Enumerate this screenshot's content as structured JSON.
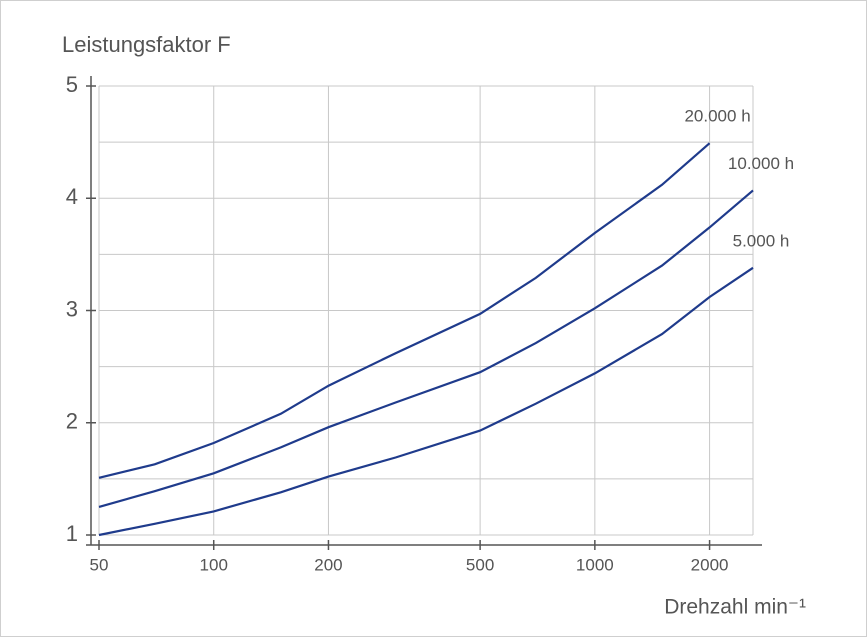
{
  "chart_data": {
    "type": "line",
    "y_label": "Leistungsfaktor F",
    "x_label": "Drehzahl min⁻¹",
    "x_scale": "log",
    "x": [
      50,
      70,
      100,
      150,
      200,
      300,
      500,
      700,
      1000,
      1500,
      2000,
      2600
    ],
    "series": [
      {
        "name": "20.000 h",
        "color": "#1f3b8c",
        "values": [
          1.51,
          1.63,
          1.82,
          2.08,
          2.33,
          2.62,
          2.97,
          3.29,
          3.69,
          4.12,
          4.49,
          null
        ]
      },
      {
        "name": "10.000 h",
        "color": "#1f3b8c",
        "values": [
          1.25,
          1.39,
          1.55,
          1.78,
          1.96,
          2.18,
          2.45,
          2.71,
          3.02,
          3.4,
          3.74,
          4.07
        ]
      },
      {
        "name": "5.000 h",
        "color": "#1f3b8c",
        "values": [
          1.0,
          1.1,
          1.21,
          1.38,
          1.52,
          1.69,
          1.93,
          2.17,
          2.44,
          2.79,
          3.12,
          3.38
        ]
      }
    ],
    "xlim": [
      50,
      2600
    ],
    "xticks": [
      50,
      100,
      200,
      500,
      1000,
      2000
    ],
    "ylim": [
      1,
      5
    ],
    "yticks": [
      1,
      2,
      3,
      4,
      5
    ],
    "yminor": [
      1.5,
      2.5,
      3.5,
      4.5
    ],
    "grid": true
  }
}
